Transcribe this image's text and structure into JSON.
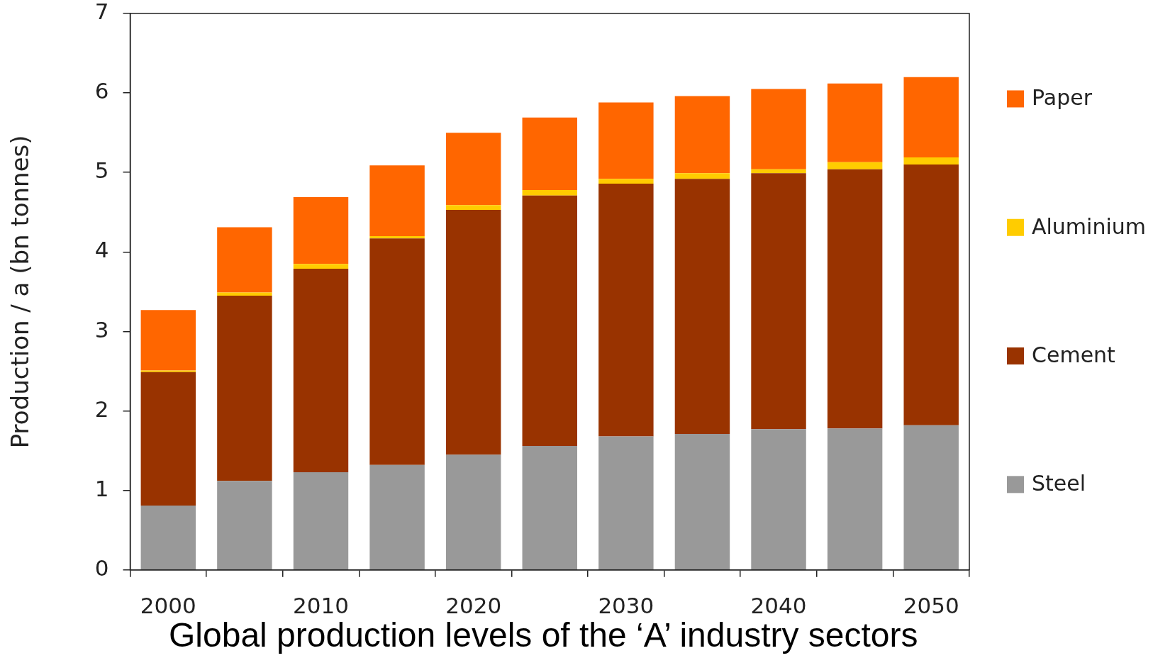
{
  "chart_data": {
    "type": "bar",
    "title": "Global production levels of the ‘A’ industry sectors",
    "ylabel": "Production / a (bn tonnes)",
    "categories": [
      "2000",
      null,
      "2010",
      null,
      "2020",
      null,
      "2030",
      null,
      "2040",
      null,
      "2050"
    ],
    "stacked": true,
    "series": [
      {
        "name": "Steel",
        "color": "#999999",
        "values": [
          0.81,
          1.12,
          1.23,
          1.32,
          1.45,
          1.56,
          1.68,
          1.71,
          1.77,
          1.78,
          1.82
        ]
      },
      {
        "name": "Cement",
        "color": "#993300",
        "values": [
          1.68,
          2.33,
          2.56,
          2.85,
          3.08,
          3.15,
          3.18,
          3.21,
          3.22,
          3.26,
          3.28
        ]
      },
      {
        "name": "Aluminium",
        "color": "#ffcc00",
        "values": [
          0.02,
          0.04,
          0.06,
          0.03,
          0.06,
          0.07,
          0.06,
          0.07,
          0.05,
          0.09,
          0.09
        ]
      },
      {
        "name": "Paper",
        "color": "#ff6600",
        "values": [
          0.76,
          0.82,
          0.84,
          0.89,
          0.91,
          0.91,
          0.96,
          0.97,
          1.01,
          0.99,
          1.01
        ]
      }
    ],
    "ylim": [
      0,
      7
    ],
    "yticks": [
      0,
      1,
      2,
      3,
      4,
      5,
      6,
      7
    ],
    "legend": "right"
  }
}
